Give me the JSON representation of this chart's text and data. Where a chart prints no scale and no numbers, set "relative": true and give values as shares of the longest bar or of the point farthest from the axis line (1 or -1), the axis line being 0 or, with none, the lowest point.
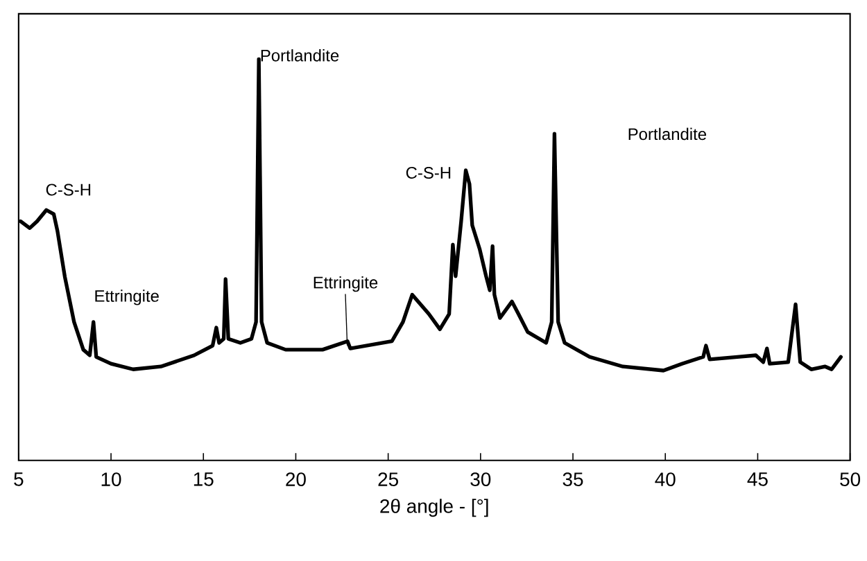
{
  "chart_data": {
    "type": "line",
    "relative": true,
    "xlabel": "2θ angle - [°]",
    "xlim": [
      5,
      50
    ],
    "xticks": [
      5,
      10,
      15,
      20,
      25,
      30,
      35,
      40,
      45,
      50
    ],
    "tick_labels": "x",
    "line_style": "solid",
    "annotations": [
      "C-S-H",
      "Ettringite",
      "Portlandite",
      "Ettringite",
      "C-S-H",
      "Portlandite"
    ],
    "series": [
      {
        "color": "#000000",
        "x": [
          5.1,
          5.6,
          6.0,
          6.5,
          6.9,
          7.1,
          7.5,
          8.0,
          8.5,
          8.85,
          9.05,
          9.2,
          10.0,
          11.2,
          12.7,
          14.5,
          15.5,
          15.7,
          15.85,
          16.1,
          16.2,
          16.35,
          17.0,
          17.6,
          17.85,
          18.0,
          18.15,
          18.45,
          19.45,
          21.45,
          22.8,
          22.95,
          25.2,
          25.8,
          26.3,
          27.2,
          27.8,
          28.3,
          28.5,
          28.65,
          28.95,
          29.2,
          29.4,
          29.55,
          29.95,
          30.3,
          30.5,
          30.65,
          30.75,
          31.05,
          31.7,
          32.05,
          32.55,
          33.55,
          33.85,
          34.0,
          34.2,
          34.55,
          35.9,
          37.7,
          39.9,
          40.9,
          42.05,
          42.2,
          42.4,
          43.9,
          44.9,
          45.3,
          45.5,
          45.65,
          46.65,
          47.05,
          47.3,
          47.9,
          48.65,
          49.0,
          49.5
        ],
        "values": [
          0.596,
          0.579,
          0.596,
          0.624,
          0.614,
          0.572,
          0.458,
          0.345,
          0.276,
          0.262,
          0.345,
          0.258,
          0.241,
          0.227,
          0.234,
          0.262,
          0.286,
          0.331,
          0.293,
          0.303,
          0.452,
          0.303,
          0.293,
          0.303,
          0.345,
          1.0,
          0.345,
          0.293,
          0.276,
          0.276,
          0.297,
          0.279,
          0.297,
          0.345,
          0.413,
          0.365,
          0.327,
          0.365,
          0.538,
          0.459,
          0.596,
          0.723,
          0.689,
          0.586,
          0.527,
          0.459,
          0.424,
          0.534,
          0.413,
          0.355,
          0.396,
          0.365,
          0.32,
          0.293,
          0.345,
          0.814,
          0.345,
          0.293,
          0.258,
          0.234,
          0.224,
          0.241,
          0.258,
          0.286,
          0.252,
          0.258,
          0.262,
          0.245,
          0.279,
          0.241,
          0.245,
          0.389,
          0.245,
          0.227,
          0.234,
          0.227,
          0.258
        ]
      }
    ]
  }
}
